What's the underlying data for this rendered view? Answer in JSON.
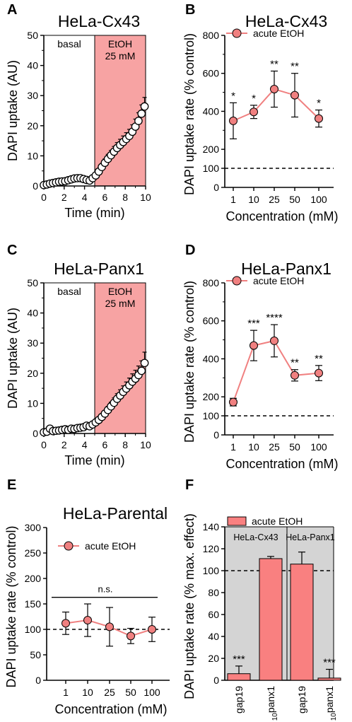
{
  "chart_data": [
    {
      "panel": "A",
      "type": "scatter",
      "title": "HeLa-Cx43",
      "xlabel": "Time (min)",
      "ylabel": "DAPI uptake (AU)",
      "xlim": [
        0,
        10
      ],
      "ylim": [
        0,
        50
      ],
      "xticks": [
        "0",
        "2",
        "4",
        "6",
        "8",
        "10"
      ],
      "yticks": [
        "0",
        "10",
        "20",
        "30",
        "40",
        "50"
      ],
      "regions": [
        {
          "label": "basal",
          "x": [
            0,
            5
          ],
          "color": "#ffffff"
        },
        {
          "label": "EtOH\n25 mM",
          "x": [
            5,
            10
          ],
          "color": "#f7a3a3"
        }
      ],
      "x": [
        0,
        0.3,
        0.6,
        0.9,
        1.2,
        1.5,
        1.8,
        2.1,
        2.4,
        2.7,
        3.0,
        3.3,
        3.6,
        3.9,
        4.2,
        4.5,
        4.8,
        5.1,
        5.4,
        5.7,
        6.0,
        6.3,
        6.6,
        6.9,
        7.2,
        7.5,
        7.8,
        8.1,
        8.4,
        8.7,
        9.0,
        9.3,
        9.6,
        9.9
      ],
      "y": [
        0.3,
        0.5,
        0.8,
        1.0,
        1.2,
        1.4,
        1.5,
        1.6,
        1.9,
        2.2,
        2.5,
        2.6,
        2.6,
        2.3,
        2.0,
        1.8,
        2.6,
        3.5,
        4.8,
        6.3,
        7.7,
        9.0,
        10.2,
        11.4,
        12.6,
        13.6,
        14.6,
        15.6,
        16.6,
        18.0,
        19.7,
        21.6,
        24.0,
        26.4
      ],
      "err": [
        0.2,
        0.3,
        0.3,
        0.3,
        0.3,
        0.4,
        0.4,
        0.4,
        0.4,
        0.5,
        0.5,
        0.5,
        0.5,
        0.5,
        0.5,
        0.5,
        0.6,
        0.7,
        0.9,
        1.1,
        1.3,
        1.5,
        1.6,
        1.7,
        1.8,
        1.9,
        2.0,
        2.1,
        2.2,
        2.3,
        2.5,
        2.7,
        2.9,
        3.0
      ]
    },
    {
      "panel": "B",
      "type": "line",
      "title": "HeLa-Cx43",
      "xlabel": "Concentration (mM)",
      "ylabel": "DAPI uptake rate (% control)",
      "categories": [
        "1",
        "10",
        "25",
        "50",
        "100"
      ],
      "yticks": [
        "0",
        "100",
        "200",
        "400",
        "600",
        "800"
      ],
      "ylim": [
        0,
        800
      ],
      "reference_line": 100,
      "series": [
        {
          "name": "acute EtOH",
          "values": [
            350,
            397,
            517,
            485,
            362
          ],
          "err": [
            95,
            35,
            95,
            115,
            45
          ]
        }
      ],
      "significance": [
        "*",
        "*",
        "**",
        "**",
        "*"
      ]
    },
    {
      "panel": "C",
      "type": "scatter",
      "title": "HeLa-Panx1",
      "xlabel": "Time (min)",
      "ylabel": "DAPI uptake (AU)",
      "xlim": [
        0,
        10
      ],
      "ylim": [
        0,
        50
      ],
      "xticks": [
        "0",
        "2",
        "4",
        "6",
        "8",
        "10"
      ],
      "yticks": [
        "0",
        "10",
        "20",
        "30",
        "40",
        "50"
      ],
      "regions": [
        {
          "label": "basal",
          "x": [
            0,
            5
          ],
          "color": "#ffffff"
        },
        {
          "label": "EtOH\n25 mM",
          "x": [
            5,
            10
          ],
          "color": "#f7a3a3"
        }
      ],
      "x": [
        0,
        0.3,
        0.6,
        0.9,
        1.2,
        1.5,
        1.8,
        2.1,
        2.4,
        2.7,
        3.0,
        3.3,
        3.6,
        3.9,
        4.2,
        4.5,
        4.8,
        5.1,
        5.4,
        5.7,
        6.0,
        6.3,
        6.6,
        6.9,
        7.2,
        7.5,
        7.8,
        8.1,
        8.4,
        8.7,
        9.0,
        9.3,
        9.6,
        9.9
      ],
      "y": [
        0.4,
        0.6,
        1.6,
        0.8,
        0.9,
        1.0,
        1.2,
        1.4,
        1.2,
        1.6,
        1.5,
        1.8,
        1.9,
        2.1,
        2.6,
        2.4,
        3.0,
        3.7,
        4.5,
        5.5,
        6.6,
        7.8,
        9.0,
        10.2,
        11.5,
        12.6,
        13.8,
        14.9,
        16.0,
        17.2,
        18.2,
        19.4,
        20.8,
        23.4
      ],
      "err": [
        0.2,
        0.3,
        0.3,
        0.3,
        0.3,
        0.3,
        0.3,
        0.4,
        0.4,
        0.4,
        0.4,
        0.5,
        0.5,
        0.5,
        0.6,
        0.6,
        0.6,
        0.7,
        0.8,
        0.9,
        1.0,
        1.2,
        1.4,
        1.6,
        1.7,
        1.9,
        2.0,
        2.2,
        2.4,
        2.6,
        2.8,
        3.0,
        3.3,
        3.6
      ]
    },
    {
      "panel": "D",
      "type": "line",
      "title": "HeLa-Panx1",
      "xlabel": "Concentration (mM)",
      "ylabel": "DAPI uptake rate (% control)",
      "categories": [
        "1",
        "10",
        "25",
        "50",
        "100"
      ],
      "yticks": [
        "0",
        "100",
        "200",
        "400",
        "600",
        "800"
      ],
      "ylim": [
        0,
        800
      ],
      "reference_line": 100,
      "series": [
        {
          "name": "acute EtOH",
          "values": [
            172,
            470,
            495,
            313,
            325
          ],
          "err": [
            20,
            80,
            85,
            30,
            40
          ]
        }
      ],
      "significance": [
        "",
        "***",
        "****",
        "**",
        "**"
      ]
    },
    {
      "panel": "E",
      "type": "line",
      "title": "HeLa-Parental",
      "xlabel": "Concentration (mM)",
      "ylabel": "DAPI uptake rate (% control)",
      "categories": [
        "1",
        "10",
        "25",
        "50",
        "100"
      ],
      "yticks": [
        "0",
        "50",
        "100",
        "150",
        "200",
        "250",
        "300"
      ],
      "ylim": [
        0,
        300
      ],
      "reference_line": 100,
      "series": [
        {
          "name": "acute EtOH",
          "values": [
            112,
            118,
            105,
            87,
            100
          ],
          "err": [
            22,
            32,
            38,
            15,
            24
          ]
        }
      ],
      "bracket_label": "n.s."
    },
    {
      "panel": "F",
      "type": "bar",
      "xlabel": "",
      "ylabel": "DAPI uptake rate (% max. effect)",
      "categories": [
        "gap19",
        "10panx1",
        "gap19",
        "10panx1"
      ],
      "groups": [
        "HeLa-Cx43",
        "HeLa-Panx1"
      ],
      "yticks": [
        "0",
        "20",
        "40",
        "60",
        "80",
        "100",
        "120",
        "140"
      ],
      "ylim": [
        0,
        140
      ],
      "reference_line": 100,
      "series": [
        {
          "name": "acute EtOH",
          "values": [
            6,
            111,
            106,
            2
          ],
          "err": [
            7,
            2,
            11,
            8
          ]
        }
      ],
      "significance": [
        "***",
        "",
        "",
        "***"
      ]
    }
  ],
  "panel_labels": [
    "A",
    "B",
    "C",
    "D",
    "E",
    "F"
  ],
  "colors": {
    "marker_fill": "#f08080",
    "line": "#f08080",
    "bar": "#f98080",
    "region": "#f7a3a3",
    "group_bg": "#d4d4d4"
  }
}
